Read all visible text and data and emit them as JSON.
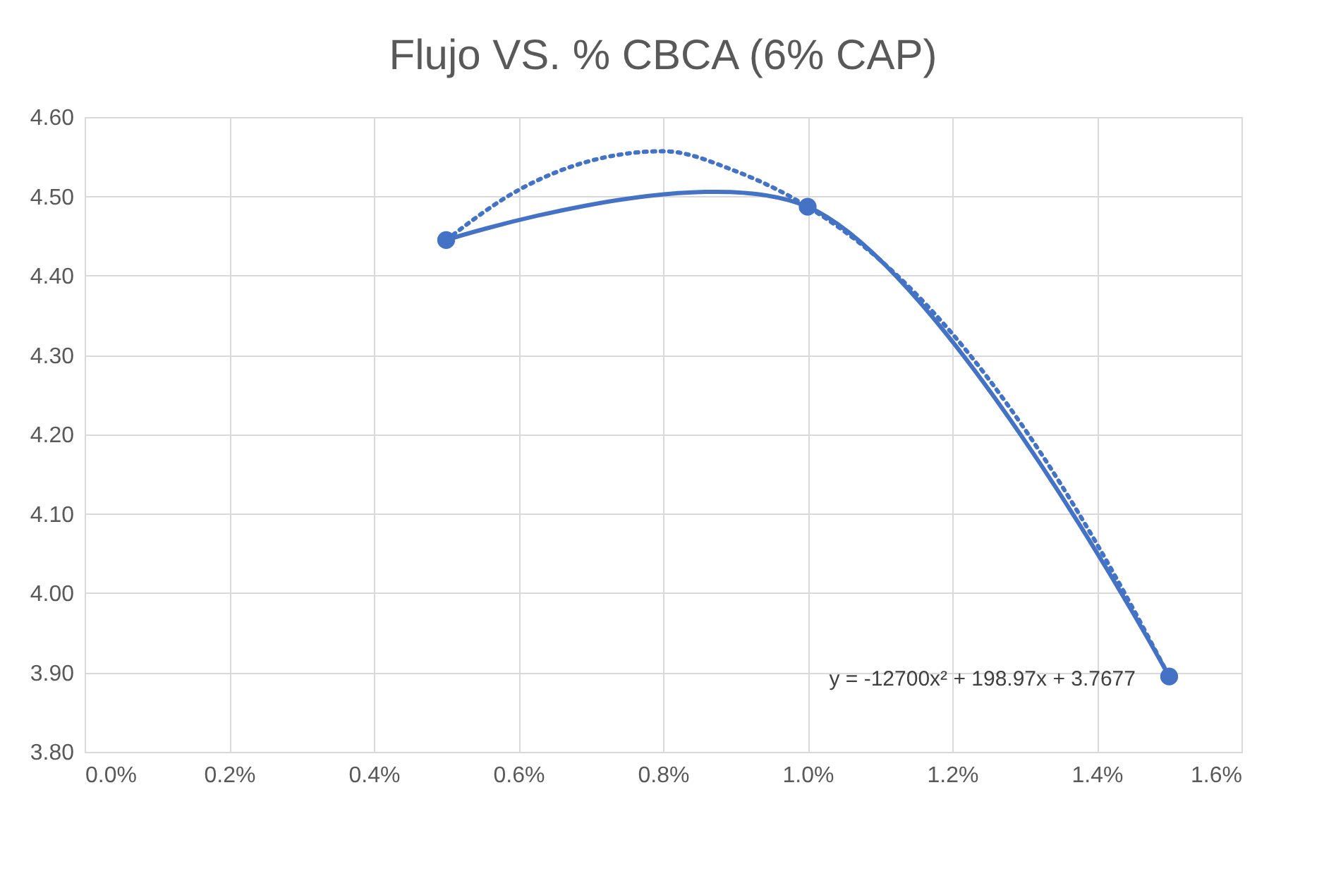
{
  "chart_data": {
    "type": "line",
    "title": "Flujo VS. % CBCA (6% CAP)",
    "series": [
      {
        "color": "#4472c4",
        "marker": "circle",
        "line_style": "solid",
        "x": [
          0.005,
          0.01,
          0.015
        ],
        "values": [
          4.445,
          4.487,
          3.895
        ]
      },
      {
        "color": "#4472c4",
        "marker": "none",
        "line_style": "dotted",
        "x": [
          0.005,
          0.006,
          0.007,
          0.008,
          0.009,
          0.01,
          0.011,
          0.012,
          0.013,
          0.014,
          0.015
        ],
        "values": [
          4.445,
          4.508,
          4.545,
          4.557,
          4.532,
          4.487,
          4.42,
          4.327,
          4.207,
          4.062,
          3.895
        ]
      }
    ],
    "annotations": [
      "y = -12700x² + 198.97x + 3.7677"
    ],
    "xlim": [
      0,
      0.016
    ],
    "xticks": [
      {
        "value": 0,
        "label": "0.0%"
      },
      {
        "value": 0.002,
        "label": "0.2%"
      },
      {
        "value": 0.004,
        "label": "0.4%"
      },
      {
        "value": 0.006,
        "label": "0.6%"
      },
      {
        "value": 0.008,
        "label": "0.8%"
      },
      {
        "value": 0.01,
        "label": "1.0%"
      },
      {
        "value": 0.012,
        "label": "1.2%"
      },
      {
        "value": 0.014,
        "label": "1.4%"
      },
      {
        "value": 0.016,
        "label": "1.6%"
      }
    ],
    "ylim": [
      3.8,
      4.6
    ],
    "yticks": [
      {
        "value": 3.8,
        "label": "3.80"
      },
      {
        "value": 3.9,
        "label": "3.90"
      },
      {
        "value": 4.0,
        "label": "4.00"
      },
      {
        "value": 4.1,
        "label": "4.10"
      },
      {
        "value": 4.2,
        "label": "4.20"
      },
      {
        "value": 4.3,
        "label": "4.30"
      },
      {
        "value": 4.4,
        "label": "4.40"
      },
      {
        "value": 4.5,
        "label": "4.50"
      },
      {
        "value": 4.6,
        "label": "4.60"
      }
    ],
    "grid": true
  }
}
